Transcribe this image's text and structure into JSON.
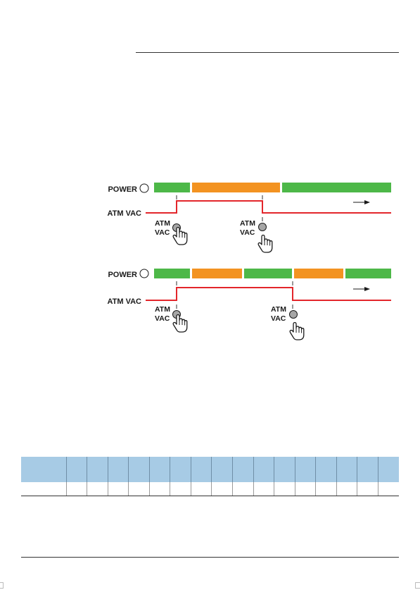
{
  "labels": {
    "power": "POWER",
    "atm_vac": "ATM VAC",
    "atm": "ATM",
    "vac": "VAC"
  },
  "colors": {
    "green": "#4db848",
    "orange": "#f39321",
    "red": "#e3262b",
    "button": "#a6a6a6",
    "table_header": "#a7cbe5"
  },
  "diagrams": [
    {
      "id": "diagram-1",
      "power_segments": [
        "green",
        "orange",
        "green"
      ],
      "atm_vac_presses": 2
    },
    {
      "id": "diagram-2",
      "power_segments": [
        "green",
        "orange",
        "green",
        "orange",
        "green"
      ],
      "atm_vac_presses": 2
    }
  ],
  "icons": [
    "power-indicator-icon",
    "arrow-right-icon",
    "button-icon",
    "hand-press-icon"
  ],
  "table": {
    "columns": 17,
    "rows": 2
  }
}
